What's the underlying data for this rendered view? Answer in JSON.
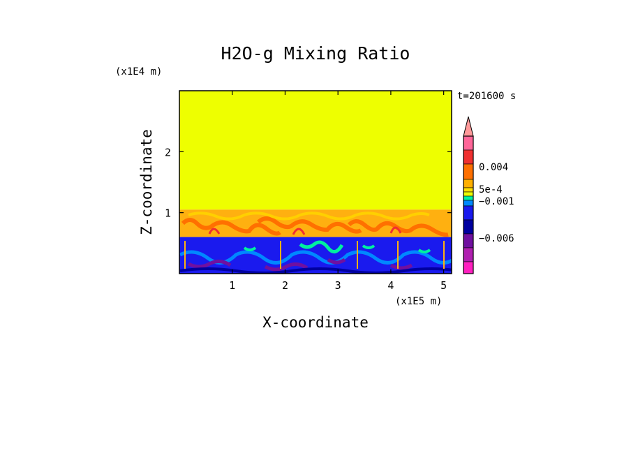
{
  "chart_data": {
    "type": "heatmap",
    "title": "H2O-g Mixing Ratio",
    "xlabel": "X-coordinate",
    "ylabel": "Z-coordinate",
    "x_unit": "(x1E5 m)",
    "y_unit": "(x1E4 m)",
    "time_label": "t=201600 s",
    "xlim": [
      0,
      5.15
    ],
    "ylim": [
      0,
      3.0
    ],
    "x_ticks": [
      "1",
      "2",
      "3",
      "4",
      "5"
    ],
    "y_ticks": [
      "1",
      "2"
    ],
    "regions": [
      {
        "name": "upper",
        "z_range": [
          1.05,
          3.0
        ],
        "color": "#eeff00"
      },
      {
        "name": "middle",
        "z_range": [
          0.6,
          1.05
        ],
        "color": "#ffb010"
      },
      {
        "name": "lower",
        "z_range": [
          0.0,
          0.6
        ],
        "color": "#1a1aee"
      }
    ],
    "colorbar": {
      "labels": [
        "0.004",
        "5e-4",
        "−0.001",
        "−0.006"
      ],
      "segment_colors": [
        "#ff6699",
        "#f03030",
        "#ff7000",
        "#ffb000",
        "#ffe000",
        "#eeff00",
        "#00f0a0",
        "#0088ff",
        "#1a1aee",
        "#0000a0",
        "#7010a0",
        "#b020b0",
        "#ff20c0"
      ]
    }
  }
}
